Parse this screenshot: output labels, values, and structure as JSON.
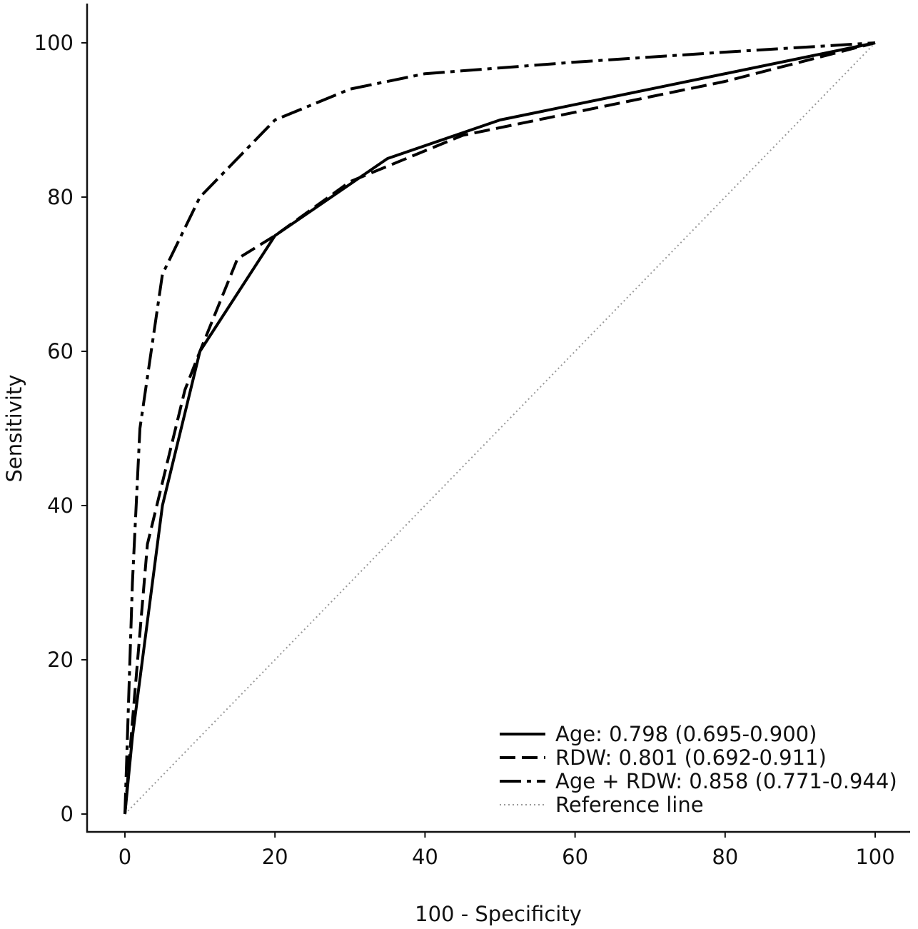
{
  "chart_data": {
    "type": "line",
    "title": "",
    "xlabel": "100 - Specificity",
    "ylabel": "Sensitivity",
    "xlim": [
      0,
      100
    ],
    "ylim": [
      0,
      100
    ],
    "xticks": [
      "0",
      "20",
      "40",
      "60",
      "80",
      "100"
    ],
    "yticks": [
      "0",
      "20",
      "40",
      "60",
      "80",
      "100"
    ],
    "grid": false,
    "legend_position": "bottom-right",
    "series": [
      {
        "name": "Age: 0.798 (0.695-0.900)",
        "style": "solid",
        "color": "#000000",
        "x": [
          0,
          1,
          5,
          10,
          20,
          35,
          50,
          70,
          100
        ],
        "y": [
          0,
          10,
          40,
          60,
          75,
          85,
          90,
          94,
          100
        ]
      },
      {
        "name": "RDW: 0.801 (0.692-0.911)",
        "style": "dashed",
        "color": "#000000",
        "x": [
          0,
          1,
          3,
          8,
          10,
          15,
          20,
          30,
          45,
          60,
          80,
          100
        ],
        "y": [
          0,
          12,
          35,
          55,
          60,
          72,
          75,
          82,
          88,
          91,
          95,
          100
        ]
      },
      {
        "name": "Age + RDW: 0.858 (0.771-0.944)",
        "style": "dashdot",
        "color": "#000000",
        "x": [
          0,
          1,
          2,
          5,
          10,
          20,
          30,
          40,
          60,
          80,
          100
        ],
        "y": [
          0,
          30,
          50,
          70,
          80,
          90,
          94,
          96,
          97.5,
          98.8,
          100
        ]
      },
      {
        "name": "Reference line",
        "style": "dotted",
        "color": "#999999",
        "x": [
          0,
          100
        ],
        "y": [
          0,
          100
        ]
      }
    ]
  }
}
